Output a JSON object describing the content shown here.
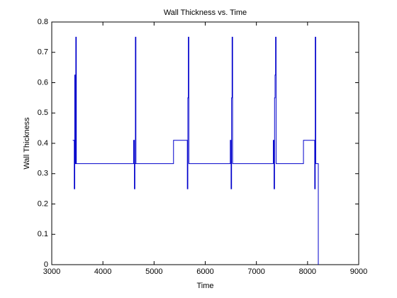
{
  "chart_data": {
    "type": "line",
    "title": "Wall Thickness vs. Time",
    "x_label": "Time",
    "y_label": "Wall Thickness",
    "x": [
      3410,
      3440,
      3440,
      3450,
      3450,
      3460,
      3460,
      3470,
      3470,
      3480,
      3480,
      4600,
      4600,
      4615,
      4615,
      4625,
      4625,
      4635,
      4635,
      4645,
      4645,
      5380,
      5380,
      5650,
      5650,
      5660,
      5660,
      5670,
      5670,
      5680,
      5680,
      6490,
      6490,
      6505,
      6505,
      6515,
      6515,
      6525,
      6525,
      6535,
      6535,
      7330,
      7330,
      7345,
      7345,
      7355,
      7355,
      7365,
      7365,
      7375,
      7375,
      7385,
      7385,
      7920,
      7920,
      8140,
      8140,
      8150,
      8150,
      8160,
      8160,
      8210,
      8210
    ],
    "values": [
      0.41,
      0.41,
      0.25,
      0.25,
      0.625,
      0.625,
      0.333,
      0.333,
      0.75,
      0.75,
      0.333,
      0.333,
      0.41,
      0.41,
      0.25,
      0.25,
      0.333,
      0.333,
      0.75,
      0.75,
      0.333,
      0.333,
      0.41,
      0.41,
      0.25,
      0.25,
      0.55,
      0.55,
      0.75,
      0.75,
      0.333,
      0.333,
      0.41,
      0.41,
      0.25,
      0.25,
      0.55,
      0.55,
      0.75,
      0.75,
      0.333,
      0.333,
      0.41,
      0.41,
      0.25,
      0.25,
      0.55,
      0.55,
      0.625,
      0.625,
      0.75,
      0.75,
      0.333,
      0.333,
      0.41,
      0.41,
      0.25,
      0.25,
      0.75,
      0.75,
      0.333,
      0.333,
      0
    ],
    "color": "#0000cc",
    "xlim": [
      3000,
      9000
    ],
    "xticks": [
      3000,
      4000,
      5000,
      6000,
      7000,
      8000,
      9000
    ],
    "ylim": [
      0,
      0.8
    ],
    "yticks": [
      0,
      0.1,
      0.2,
      0.3,
      0.4,
      0.5,
      0.6,
      0.7,
      0.8
    ]
  }
}
